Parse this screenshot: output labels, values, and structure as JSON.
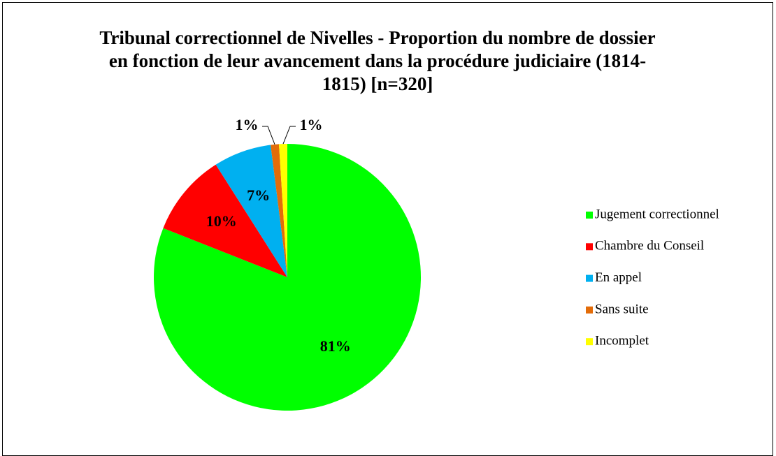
{
  "chart_data": {
    "type": "pie",
    "title": "Tribunal correctionnel de Nivelles - Proportion du nombre de dossier en fonction de leur avancement dans la procédure judiciaire (1814-1815) [n=320]",
    "categories": [
      "Jugement correctionnel",
      "Chambre du Conseil",
      "En appel",
      "Sans suite",
      "Incomplet"
    ],
    "values": [
      81,
      10,
      7,
      1,
      1
    ],
    "colors": [
      "#00ff00",
      "#ff0000",
      "#00b0f0",
      "#e36c09",
      "#ffff00"
    ],
    "legend": "right"
  }
}
